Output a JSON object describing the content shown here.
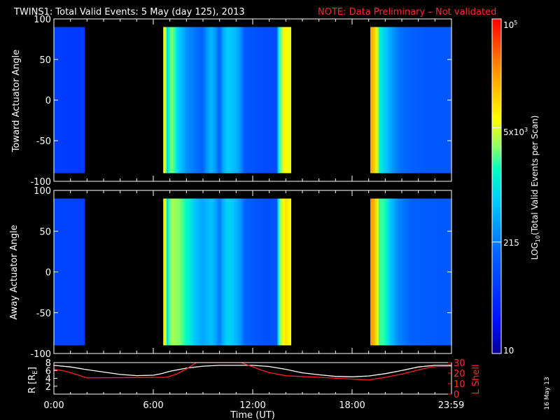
{
  "title": {
    "main": "TWINS1: Total Valid Events:  5 May (day 125), 2013",
    "note": "NOTE: Data Preliminary – Not validated",
    "note_color": "#ff2a2a"
  },
  "stamp": "16 May 13",
  "chart_data": [
    {
      "type": "heatmap",
      "ylabel": "Toward Actuator Angle",
      "ylim": [
        -100,
        100
      ],
      "yticks": [
        100,
        50,
        0,
        -50,
        -100
      ],
      "xlim_hours": [
        0,
        24
      ],
      "angle_range": [
        -90,
        90
      ],
      "coverage_hours": [
        [
          0.0,
          1.85
        ],
        [
          6.6,
          14.3
        ],
        [
          19.1,
          24.0
        ]
      ],
      "colorscale": "log",
      "colorbar_label": "LOG10(Total Valid Events per Scan)",
      "colorbar_range": [
        10,
        100000
      ],
      "colorbar_ticks": [
        "10",
        "215",
        "5x10^3",
        "10^5"
      ],
      "profile_hours": [
        0.0,
        1.85,
        6.6,
        6.85,
        7.1,
        7.5,
        8.0,
        8.5,
        9.0,
        9.5,
        10.0,
        10.5,
        11.0,
        11.5,
        12.0,
        12.5,
        13.0,
        13.5,
        14.0,
        14.3,
        19.1,
        19.35,
        19.6,
        19.9,
        20.3,
        20.8,
        21.5,
        22.5,
        24.0
      ],
      "profile_values": [
        70,
        60,
        8000,
        800,
        3000,
        700,
        300,
        200,
        150,
        500,
        130,
        700,
        500,
        120,
        110,
        100,
        90,
        100,
        7000,
        5000,
        20000,
        12000,
        1500,
        800,
        400,
        200,
        150,
        120,
        120
      ]
    },
    {
      "type": "heatmap",
      "ylabel": "Away Actuator Angle",
      "ylim": [
        -100,
        100
      ],
      "yticks": [
        100,
        50,
        0,
        -50,
        -100
      ],
      "xlim_hours": [
        0,
        24
      ],
      "angle_range": [
        -90,
        90
      ],
      "coverage_hours": [
        [
          0.0,
          1.85
        ],
        [
          6.6,
          14.3
        ],
        [
          19.1,
          24.0
        ]
      ],
      "colorscale": "log",
      "colorbar_label": "LOG10(Total Valid Events per Scan)",
      "colorbar_range": [
        10,
        100000
      ],
      "profile_hours": [
        0.0,
        1.85,
        6.6,
        6.85,
        7.1,
        7.5,
        8.0,
        8.5,
        9.0,
        9.5,
        10.0,
        10.5,
        11.0,
        11.5,
        12.0,
        12.5,
        13.0,
        13.5,
        14.0,
        14.3,
        19.1,
        19.35,
        19.6,
        19.9,
        20.3,
        20.8,
        21.5,
        22.5,
        24.0
      ],
      "profile_values": [
        80,
        70,
        9000,
        900,
        3500,
        3000,
        1500,
        600,
        400,
        600,
        200,
        800,
        500,
        150,
        130,
        110,
        100,
        120,
        9000,
        6000,
        25000,
        15000,
        2000,
        2000,
        600,
        250,
        150,
        130,
        120
      ]
    },
    {
      "type": "line",
      "xlabel": "Time (UT)",
      "xticks": [
        "0:00",
        "6:00",
        "12:00",
        "18:00",
        "23:59"
      ],
      "xtick_hours": [
        0,
        6,
        12,
        18,
        23.98
      ],
      "ylabel_left": "R [RE]",
      "ylim_left": [
        0,
        8
      ],
      "yticks_left": [
        2,
        4,
        6,
        8
      ],
      "ylabel_right": "L Shell",
      "ylim_right": [
        0,
        30
      ],
      "yticks_right": [
        0,
        10,
        20,
        30
      ],
      "series": [
        {
          "axis": "left",
          "color": "#ffffff",
          "x": [
            0,
            1,
            2,
            3,
            4,
            5,
            6,
            6.5,
            7,
            8,
            9,
            10,
            11,
            12,
            13,
            14,
            15,
            16,
            17,
            18,
            19,
            20,
            21,
            22,
            23,
            23.98
          ],
          "y": [
            7.3,
            6.9,
            6.2,
            5.6,
            5.0,
            4.7,
            4.8,
            5.2,
            5.8,
            6.6,
            7.1,
            7.3,
            7.3,
            7.3,
            7.0,
            6.3,
            5.4,
            4.9,
            4.5,
            4.4,
            4.6,
            5.2,
            6.0,
            6.9,
            7.3,
            7.3
          ]
        },
        {
          "axis": "right",
          "color": "#ff2020",
          "x": [
            0,
            0.5,
            1.0,
            1.5,
            2.0,
            3.0,
            4.0,
            5.0,
            6.0,
            6.8,
            7.4,
            8.0,
            8.6,
            8.75,
            11.15,
            11.3,
            12.0,
            12.5,
            13.0,
            13.5,
            14.0,
            16.0,
            19.0,
            20.0,
            21.0,
            22.0,
            22.8,
            23.3,
            23.98
          ],
          "y": [
            23.5,
            22.5,
            20.5,
            18,
            15.5,
            15.6,
            15.7,
            15.8,
            15.9,
            16,
            19,
            24,
            30,
            31,
            31,
            30,
            26,
            23,
            20.5,
            19,
            17.5,
            16,
            13.5,
            16,
            19,
            23,
            26,
            26.3,
            26.5
          ]
        }
      ]
    }
  ]
}
